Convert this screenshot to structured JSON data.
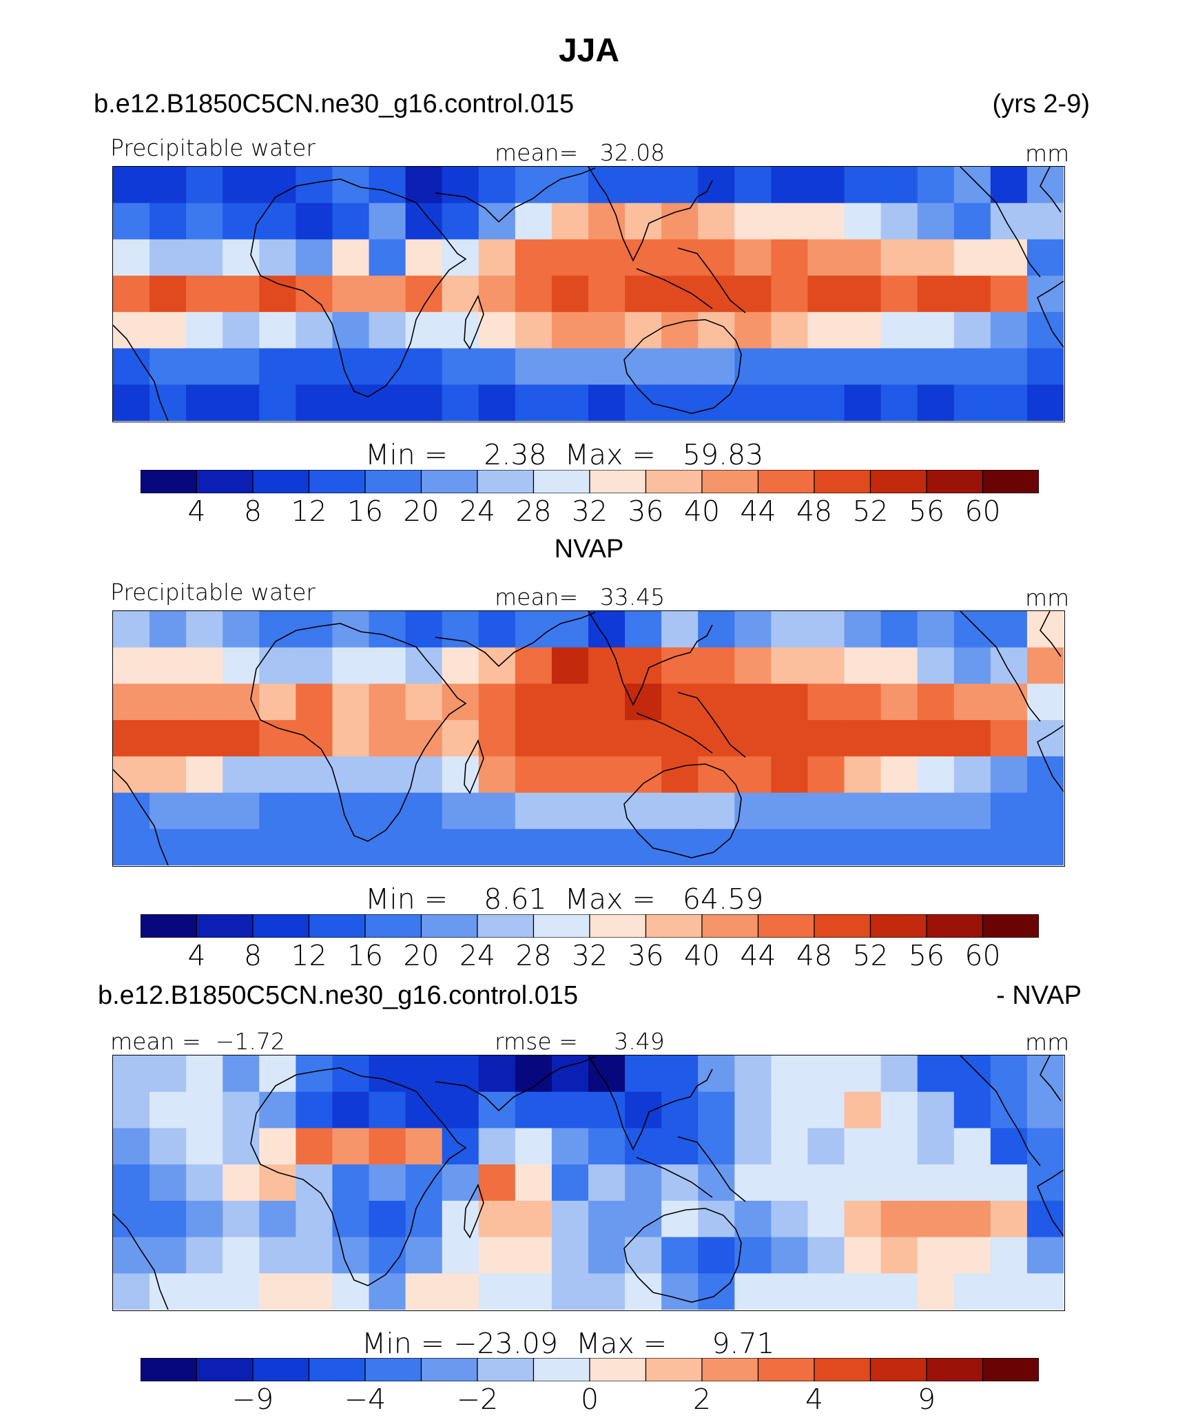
{
  "figure": {
    "title": "JJA",
    "case_name": "b.e12.B1850C5CN.ne30_g16.control.015",
    "years": "(yrs 2-9)",
    "obs_name": "NVAP",
    "diff_case_name": "b.e12.B1850C5CN.ne30_g16.control.015",
    "diff_suffix": "- NVAP"
  },
  "colors": {
    "scale": [
      "#08087e",
      "#0a1fb4",
      "#0f3ad6",
      "#1f5ae8",
      "#3c78ee",
      "#6a99f0",
      "#a7c4f5",
      "#d8e7fa",
      "#fde3d4",
      "#fbbf9e",
      "#f69569",
      "#f06e3f",
      "#e14a1e",
      "#c2290d",
      "#9b1208",
      "#6a0404"
    ]
  },
  "chart_data": [
    {
      "type": "heatmap",
      "panel": "model",
      "variable": "Precipitable water",
      "units": "mm",
      "mean_label": "mean=",
      "mean": "32.08",
      "min_label": "Min =",
      "min": "2.38",
      "max_label": "Max =",
      "max": "59.83",
      "colorbar_ticks": [
        "4",
        "8",
        "12",
        "16",
        "20",
        "24",
        "28",
        "32",
        "36",
        "40",
        "44",
        "48",
        "52",
        "56",
        "60"
      ],
      "field_levels": [
        [
          2,
          2,
          3,
          2,
          2,
          3,
          4,
          3,
          1,
          2,
          3,
          4,
          4,
          3,
          3,
          3,
          2,
          3,
          2,
          2,
          3,
          3,
          4,
          5,
          2,
          5
        ],
        [
          4,
          3,
          4,
          3,
          3,
          2,
          3,
          5,
          2,
          3,
          5,
          7,
          9,
          10,
          9,
          10,
          9,
          8,
          8,
          8,
          7,
          6,
          5,
          4,
          6,
          6
        ],
        [
          7,
          6,
          6,
          7,
          6,
          5,
          8,
          4,
          8,
          7,
          9,
          11,
          11,
          11,
          11,
          11,
          11,
          10,
          11,
          10,
          10,
          9,
          9,
          8,
          8,
          4
        ],
        [
          11,
          12,
          11,
          11,
          12,
          11,
          10,
          10,
          11,
          9,
          10,
          11,
          12,
          11,
          12,
          12,
          12,
          12,
          11,
          12,
          12,
          11,
          12,
          12,
          11,
          5
        ],
        [
          8,
          8,
          7,
          6,
          7,
          6,
          5,
          6,
          7,
          7,
          8,
          9,
          10,
          10,
          9,
          10,
          9,
          10,
          9,
          8,
          8,
          7,
          7,
          6,
          5,
          4
        ],
        [
          3,
          4,
          4,
          4,
          3,
          3,
          3,
          3,
          3,
          4,
          4,
          5,
          5,
          5,
          5,
          5,
          5,
          4,
          4,
          4,
          4,
          4,
          4,
          4,
          4,
          3
        ],
        [
          2,
          3,
          2,
          2,
          3,
          2,
          2,
          2,
          2,
          3,
          2,
          3,
          3,
          2,
          3,
          3,
          3,
          3,
          3,
          3,
          2,
          3,
          2,
          3,
          3,
          2
        ]
      ]
    },
    {
      "type": "heatmap",
      "panel": "observation",
      "variable": "Precipitable water",
      "units": "mm",
      "mean_label": "mean=",
      "mean": "33.45",
      "min_label": "Min =",
      "min": "8.61",
      "max_label": "Max =",
      "max": "64.59",
      "colorbar_ticks": [
        "4",
        "8",
        "12",
        "16",
        "20",
        "24",
        "28",
        "32",
        "36",
        "40",
        "44",
        "48",
        "52",
        "56",
        "60"
      ],
      "field_levels": [
        [
          6,
          5,
          6,
          5,
          4,
          4,
          5,
          4,
          3,
          4,
          3,
          4,
          4,
          2,
          4,
          6,
          4,
          5,
          6,
          6,
          5,
          4,
          5,
          4,
          4,
          8
        ],
        [
          8,
          8,
          8,
          7,
          6,
          6,
          7,
          7,
          6,
          8,
          9,
          11,
          13,
          12,
          12,
          11,
          11,
          10,
          9,
          9,
          8,
          8,
          6,
          5,
          6,
          10
        ],
        [
          10,
          10,
          10,
          10,
          9,
          11,
          9,
          10,
          9,
          10,
          11,
          12,
          12,
          12,
          13,
          12,
          12,
          12,
          12,
          11,
          11,
          10,
          11,
          10,
          10,
          7
        ],
        [
          12,
          12,
          12,
          12,
          11,
          11,
          9,
          10,
          10,
          9,
          11,
          12,
          12,
          12,
          12,
          12,
          12,
          12,
          12,
          12,
          12,
          12,
          12,
          12,
          11,
          6
        ],
        [
          9,
          9,
          8,
          6,
          6,
          6,
          6,
          6,
          6,
          7,
          10,
          11,
          11,
          11,
          11,
          12,
          11,
          11,
          12,
          11,
          9,
          8,
          7,
          6,
          5,
          4
        ],
        [
          4,
          5,
          5,
          5,
          4,
          4,
          4,
          4,
          4,
          5,
          5,
          6,
          6,
          6,
          6,
          6,
          6,
          5,
          5,
          5,
          5,
          5,
          5,
          5,
          4,
          4
        ],
        [
          4,
          4,
          4,
          4,
          4,
          4,
          4,
          4,
          4,
          4,
          4,
          4,
          4,
          4,
          4,
          4,
          4,
          4,
          4,
          4,
          4,
          4,
          4,
          4,
          4,
          4
        ]
      ]
    },
    {
      "type": "heatmap",
      "panel": "difference",
      "variable": "",
      "units": "mm",
      "mean_label": "mean =",
      "mean": "−1.72",
      "rmse_label": "rmse =",
      "rmse": "3.49",
      "min_label": "Min =",
      "min": "−23.09",
      "max_label": "Max =",
      "max": "9.71",
      "colorbar_ticks": [
        "−9",
        "−4",
        "−2",
        "0",
        "2",
        "4",
        "9"
      ],
      "field_levels": [
        [
          6,
          6,
          7,
          5,
          7,
          4,
          3,
          2,
          2,
          2,
          1,
          0,
          1,
          0,
          3,
          3,
          5,
          6,
          7,
          7,
          7,
          6,
          3,
          3,
          4,
          5
        ],
        [
          6,
          7,
          7,
          6,
          5,
          3,
          2,
          3,
          2,
          2,
          4,
          3,
          3,
          3,
          2,
          3,
          4,
          6,
          7,
          7,
          9,
          7,
          6,
          3,
          4,
          5
        ],
        [
          5,
          6,
          7,
          6,
          8,
          11,
          10,
          11,
          10,
          3,
          6,
          7,
          5,
          4,
          3,
          3,
          4,
          6,
          7,
          6,
          7,
          7,
          6,
          7,
          3,
          4
        ],
        [
          4,
          5,
          6,
          8,
          9,
          6,
          4,
          5,
          4,
          5,
          11,
          8,
          4,
          6,
          5,
          6,
          5,
          7,
          7,
          7,
          7,
          7,
          7,
          7,
          7,
          4
        ],
        [
          4,
          4,
          5,
          6,
          5,
          6,
          4,
          3,
          4,
          7,
          9,
          9,
          6,
          5,
          5,
          7,
          6,
          5,
          6,
          7,
          9,
          10,
          10,
          10,
          9,
          3
        ],
        [
          5,
          5,
          6,
          7,
          6,
          6,
          5,
          4,
          5,
          7,
          8,
          8,
          6,
          5,
          6,
          4,
          3,
          4,
          5,
          6,
          8,
          9,
          8,
          8,
          7,
          5
        ],
        [
          6,
          7,
          7,
          7,
          8,
          8,
          7,
          5,
          8,
          8,
          7,
          7,
          6,
          6,
          7,
          5,
          4,
          7,
          7,
          7,
          7,
          7,
          8,
          7,
          7,
          7
        ]
      ]
    }
  ]
}
